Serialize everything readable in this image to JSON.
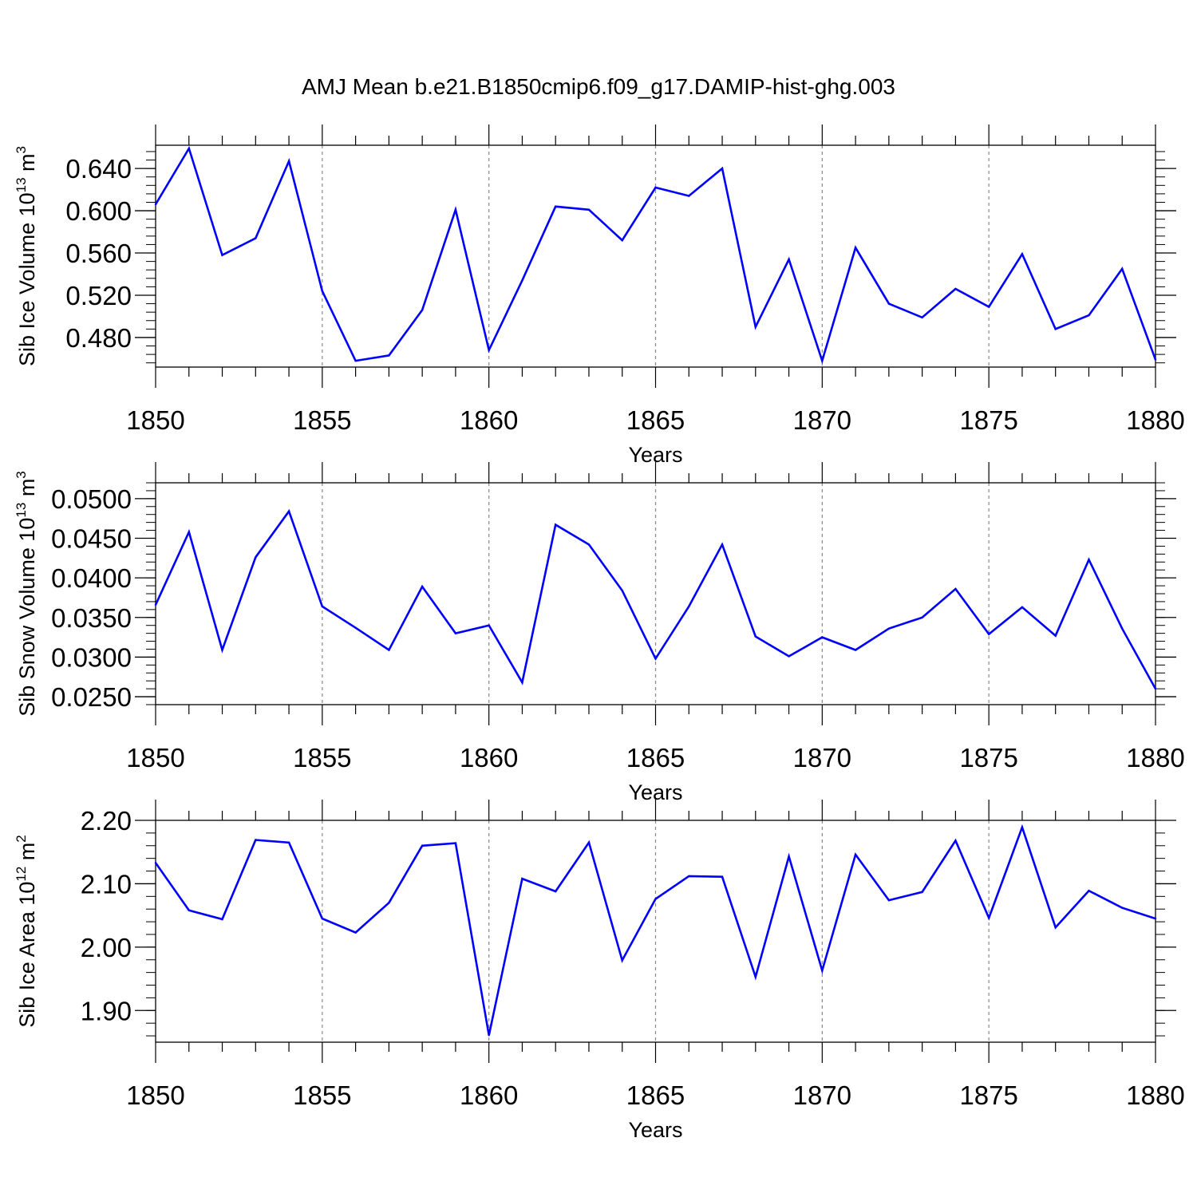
{
  "title": "AMJ Mean b.e21.B1850cmip6.f09_g17.DAMIP-hist-ghg.003",
  "colors": {
    "line": "#0000ff",
    "axis": "#000000",
    "grid": "#888888"
  },
  "chart_data": [
    {
      "type": "line",
      "name": "ice-volume",
      "ylabel_main": "Sib Ice Volume 10",
      "ylabel_exp": "13",
      "ylabel_unit": " m",
      "ylabel_unit_exp": "3",
      "xlabel": "Years",
      "xlim": [
        1850,
        1880
      ],
      "ylim": [
        0.452,
        0.662
      ],
      "xticks": [
        "1850",
        "1855",
        "1860",
        "1865",
        "1870",
        "1875",
        "1880"
      ],
      "yticks": [
        "0.480",
        "0.520",
        "0.560",
        "0.600",
        "0.640"
      ],
      "yminor_step": 0.008,
      "x": [
        1850,
        1851,
        1852,
        1853,
        1854,
        1855,
        1856,
        1857,
        1858,
        1859,
        1860,
        1861,
        1862,
        1863,
        1864,
        1865,
        1866,
        1867,
        1868,
        1869,
        1870,
        1871,
        1872,
        1873,
        1874,
        1875,
        1876,
        1877,
        1878,
        1879,
        1880
      ],
      "values": [
        0.606,
        0.659,
        0.558,
        0.574,
        0.647,
        0.524,
        0.458,
        0.463,
        0.506,
        0.601,
        0.468,
        0.534,
        0.604,
        0.601,
        0.572,
        0.622,
        0.614,
        0.64,
        0.49,
        0.554,
        0.458,
        0.565,
        0.512,
        0.499,
        0.526,
        0.509,
        0.559,
        0.488,
        0.501,
        0.545,
        0.459
      ]
    },
    {
      "type": "line",
      "name": "snow-volume",
      "ylabel_main": "Sib Snow Volume 10",
      "ylabel_exp": "13",
      "ylabel_unit": " m",
      "ylabel_unit_exp": "3",
      "xlabel": "Years",
      "xlim": [
        1850,
        1880
      ],
      "ylim": [
        0.024,
        0.052
      ],
      "xticks": [
        "1850",
        "1855",
        "1860",
        "1865",
        "1870",
        "1875",
        "1880"
      ],
      "yticks": [
        "0.0250",
        "0.0300",
        "0.0350",
        "0.0400",
        "0.0450",
        "0.0500"
      ],
      "yminor_step": 0.001,
      "x": [
        1850,
        1851,
        1852,
        1853,
        1854,
        1855,
        1856,
        1857,
        1858,
        1859,
        1860,
        1861,
        1862,
        1863,
        1864,
        1865,
        1866,
        1867,
        1868,
        1869,
        1870,
        1871,
        1872,
        1873,
        1874,
        1875,
        1876,
        1877,
        1878,
        1879,
        1880
      ],
      "values": [
        0.0366,
        0.0458,
        0.0309,
        0.0426,
        0.0484,
        0.0364,
        0.0337,
        0.0309,
        0.0389,
        0.033,
        0.034,
        0.0268,
        0.0467,
        0.0442,
        0.0384,
        0.0298,
        0.0364,
        0.0442,
        0.0326,
        0.0301,
        0.0325,
        0.0309,
        0.0336,
        0.035,
        0.0386,
        0.0329,
        0.0363,
        0.0327,
        0.0423,
        0.0336,
        0.026
      ]
    },
    {
      "type": "line",
      "name": "ice-area",
      "ylabel_main": "Sib Ice Area 10",
      "ylabel_exp": "12",
      "ylabel_unit": " m",
      "ylabel_unit_exp": "2",
      "xlabel": "Years",
      "xlim": [
        1850,
        1880
      ],
      "ylim": [
        1.85,
        2.2
      ],
      "xticks": [
        "1850",
        "1855",
        "1860",
        "1865",
        "1870",
        "1875",
        "1880"
      ],
      "yticks": [
        "1.90",
        "2.00",
        "2.10",
        "2.20"
      ],
      "yminor_step": 0.02,
      "x": [
        1850,
        1851,
        1852,
        1853,
        1854,
        1855,
        1856,
        1857,
        1858,
        1859,
        1860,
        1861,
        1862,
        1863,
        1864,
        1865,
        1866,
        1867,
        1868,
        1869,
        1870,
        1871,
        1872,
        1873,
        1874,
        1875,
        1876,
        1877,
        1878,
        1879,
        1880
      ],
      "values": [
        2.133,
        2.058,
        2.044,
        2.169,
        2.165,
        2.045,
        2.023,
        2.07,
        2.16,
        2.164,
        1.861,
        2.108,
        2.088,
        2.165,
        1.979,
        2.076,
        2.112,
        2.111,
        1.953,
        2.143,
        1.963,
        2.146,
        2.074,
        2.087,
        2.168,
        2.046,
        2.189,
        2.031,
        2.089,
        2.062,
        2.045
      ]
    }
  ]
}
